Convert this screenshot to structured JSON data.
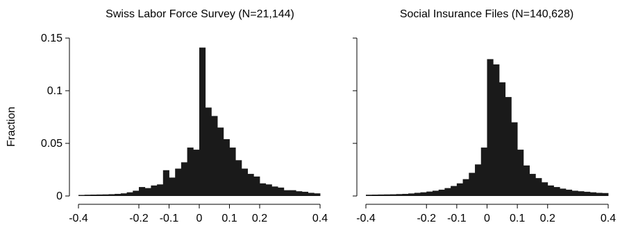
{
  "chart_data": [
    {
      "type": "bar",
      "title": "Swiss Labor Force Survey (N=21,144)",
      "ylabel": "Fraction",
      "xlabel": "",
      "xlim": [
        -0.4,
        0.4
      ],
      "ylim": [
        0,
        0.15
      ],
      "bin_width": 0.02,
      "x_ticks": [
        "-0.4",
        "-0.2",
        "-0.1",
        "0",
        "0.1",
        "0.2",
        "0.4"
      ],
      "y_ticks": [
        "0",
        "0.05",
        "0.1",
        "0.15"
      ],
      "bins": [
        {
          "x0": -0.4,
          "value": 0.001
        },
        {
          "x0": -0.38,
          "value": 0.0012
        },
        {
          "x0": -0.36,
          "value": 0.0013
        },
        {
          "x0": -0.34,
          "value": 0.0014
        },
        {
          "x0": -0.32,
          "value": 0.0015
        },
        {
          "x0": -0.3,
          "value": 0.0017
        },
        {
          "x0": -0.28,
          "value": 0.002
        },
        {
          "x0": -0.26,
          "value": 0.0025
        },
        {
          "x0": -0.24,
          "value": 0.0035
        },
        {
          "x0": -0.22,
          "value": 0.005
        },
        {
          "x0": -0.2,
          "value": 0.0085
        },
        {
          "x0": -0.18,
          "value": 0.0075
        },
        {
          "x0": -0.16,
          "value": 0.01
        },
        {
          "x0": -0.14,
          "value": 0.011
        },
        {
          "x0": -0.12,
          "value": 0.0245
        },
        {
          "x0": -0.1,
          "value": 0.0175
        },
        {
          "x0": -0.08,
          "value": 0.026
        },
        {
          "x0": -0.06,
          "value": 0.032
        },
        {
          "x0": -0.04,
          "value": 0.046
        },
        {
          "x0": -0.02,
          "value": 0.044
        },
        {
          "x0": 0.0,
          "value": 0.141
        },
        {
          "x0": 0.02,
          "value": 0.084
        },
        {
          "x0": 0.04,
          "value": 0.076
        },
        {
          "x0": 0.06,
          "value": 0.065
        },
        {
          "x0": 0.08,
          "value": 0.054
        },
        {
          "x0": 0.1,
          "value": 0.046
        },
        {
          "x0": 0.12,
          "value": 0.034
        },
        {
          "x0": 0.14,
          "value": 0.026
        },
        {
          "x0": 0.16,
          "value": 0.021
        },
        {
          "x0": 0.18,
          "value": 0.0185
        },
        {
          "x0": 0.2,
          "value": 0.012
        },
        {
          "x0": 0.22,
          "value": 0.011
        },
        {
          "x0": 0.24,
          "value": 0.009
        },
        {
          "x0": 0.26,
          "value": 0.008
        },
        {
          "x0": 0.28,
          "value": 0.0055
        },
        {
          "x0": 0.3,
          "value": 0.0055
        },
        {
          "x0": 0.32,
          "value": 0.0045
        },
        {
          "x0": 0.34,
          "value": 0.004
        },
        {
          "x0": 0.36,
          "value": 0.003
        },
        {
          "x0": 0.38,
          "value": 0.0025
        }
      ]
    },
    {
      "type": "bar",
      "title": "Social Insurance Files (N=140,628)",
      "ylabel": "",
      "xlabel": "",
      "xlim": [
        -0.4,
        0.4
      ],
      "ylim": [
        0,
        0.15
      ],
      "bin_width": 0.02,
      "x_ticks": [
        "-0.4",
        "-0.2",
        "-0.1",
        "0",
        "0.1",
        "0.2",
        "0.4"
      ],
      "y_ticks": [],
      "bins": [
        {
          "x0": -0.4,
          "value": 0.0012
        },
        {
          "x0": -0.38,
          "value": 0.0013
        },
        {
          "x0": -0.36,
          "value": 0.0014
        },
        {
          "x0": -0.34,
          "value": 0.0015
        },
        {
          "x0": -0.32,
          "value": 0.0016
        },
        {
          "x0": -0.3,
          "value": 0.0018
        },
        {
          "x0": -0.28,
          "value": 0.002
        },
        {
          "x0": -0.26,
          "value": 0.0024
        },
        {
          "x0": -0.24,
          "value": 0.003
        },
        {
          "x0": -0.22,
          "value": 0.0035
        },
        {
          "x0": -0.2,
          "value": 0.0042
        },
        {
          "x0": -0.18,
          "value": 0.005
        },
        {
          "x0": -0.16,
          "value": 0.006
        },
        {
          "x0": -0.14,
          "value": 0.0075
        },
        {
          "x0": -0.12,
          "value": 0.0095
        },
        {
          "x0": -0.1,
          "value": 0.012
        },
        {
          "x0": -0.08,
          "value": 0.016
        },
        {
          "x0": -0.06,
          "value": 0.022
        },
        {
          "x0": -0.04,
          "value": 0.03
        },
        {
          "x0": -0.02,
          "value": 0.046
        },
        {
          "x0": 0.0,
          "value": 0.13
        },
        {
          "x0": 0.02,
          "value": 0.125
        },
        {
          "x0": 0.04,
          "value": 0.108
        },
        {
          "x0": 0.06,
          "value": 0.094
        },
        {
          "x0": 0.08,
          "value": 0.07
        },
        {
          "x0": 0.1,
          "value": 0.044
        },
        {
          "x0": 0.12,
          "value": 0.029
        },
        {
          "x0": 0.14,
          "value": 0.021
        },
        {
          "x0": 0.16,
          "value": 0.017
        },
        {
          "x0": 0.18,
          "value": 0.013
        },
        {
          "x0": 0.2,
          "value": 0.01
        },
        {
          "x0": 0.22,
          "value": 0.0085
        },
        {
          "x0": 0.24,
          "value": 0.007
        },
        {
          "x0": 0.26,
          "value": 0.006
        },
        {
          "x0": 0.28,
          "value": 0.005
        },
        {
          "x0": 0.3,
          "value": 0.0045
        },
        {
          "x0": 0.32,
          "value": 0.004
        },
        {
          "x0": 0.34,
          "value": 0.0035
        },
        {
          "x0": 0.36,
          "value": 0.003
        },
        {
          "x0": 0.38,
          "value": 0.0028
        }
      ]
    }
  ]
}
